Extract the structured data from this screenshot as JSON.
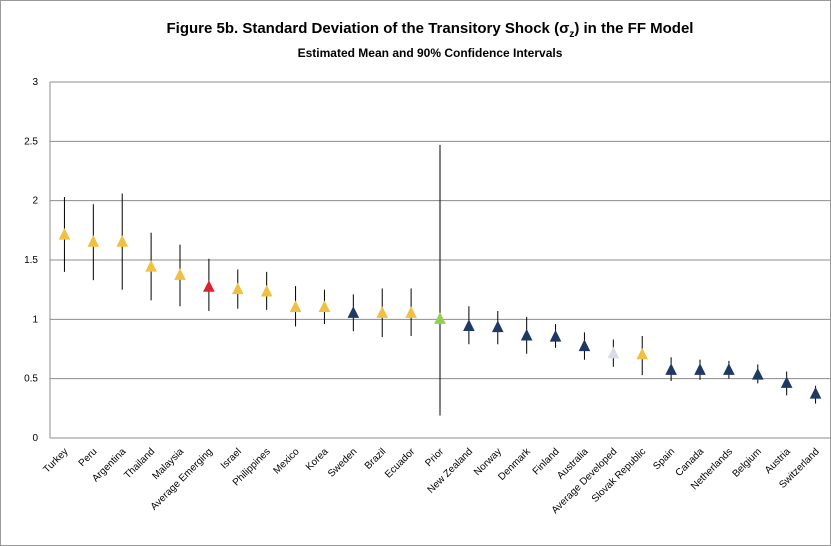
{
  "chart_data": {
    "type": "interval",
    "title": {
      "before": "Figure 5b. Standard Deviation of the Transitory Shock (σ",
      "sub": "z",
      "after": ") in the FF Model"
    },
    "subtitle": "Estimated Mean and 90% Confidence Intervals",
    "categories": [
      "Turkey",
      "Peru",
      "Argentina",
      "Thailand",
      "Malaysia",
      "Average Emerging",
      "Israel",
      "Philippines",
      "Mexico",
      "Korea",
      "Sweden",
      "Brazil",
      "Ecuador",
      "Prior",
      "New Zealand",
      "Norway",
      "Denmark",
      "Finland",
      "Australia",
      "Average Developed",
      "Slovak Republic",
      "Spain",
      "Canada",
      "Netherlands",
      "Belgium",
      "Austria",
      "Switzerland"
    ],
    "values": [
      1.71,
      1.65,
      1.65,
      1.44,
      1.37,
      1.27,
      1.25,
      1.23,
      1.1,
      1.1,
      1.05,
      1.05,
      1.05,
      1.0,
      0.94,
      0.93,
      0.86,
      0.85,
      0.77,
      0.71,
      0.7,
      0.57,
      0.57,
      0.57,
      0.53,
      0.46,
      0.37
    ],
    "lower": [
      1.4,
      1.33,
      1.25,
      1.16,
      1.11,
      1.07,
      1.09,
      1.08,
      0.94,
      0.96,
      0.9,
      0.85,
      0.86,
      0.19,
      0.79,
      0.79,
      0.71,
      0.76,
      0.66,
      0.6,
      0.53,
      0.48,
      0.49,
      0.5,
      0.46,
      0.36,
      0.29
    ],
    "upper": [
      2.03,
      1.97,
      2.06,
      1.73,
      1.63,
      1.51,
      1.42,
      1.4,
      1.28,
      1.25,
      1.21,
      1.26,
      1.26,
      2.47,
      1.11,
      1.07,
      1.02,
      0.96,
      0.89,
      0.83,
      0.86,
      0.68,
      0.66,
      0.65,
      0.62,
      0.56,
      0.44
    ],
    "colors": [
      "#f0c040",
      "#f0c040",
      "#f0c040",
      "#f0c040",
      "#f0c040",
      "#e0202a",
      "#f0c040",
      "#f0c040",
      "#f0c040",
      "#f0c040",
      "#1f3864",
      "#f0c040",
      "#f0c040",
      "#92d050",
      "#1f3864",
      "#1f3864",
      "#1f3864",
      "#1f3864",
      "#1f3864",
      "#d9dce6",
      "#f0c040",
      "#1f3864",
      "#1f3864",
      "#1f3864",
      "#1f3864",
      "#1f3864",
      "#1f3864"
    ],
    "ylim": [
      0,
      3
    ],
    "yticks": [
      0,
      0.5,
      1,
      1.5,
      2,
      2.5,
      3
    ],
    "grid": true
  }
}
